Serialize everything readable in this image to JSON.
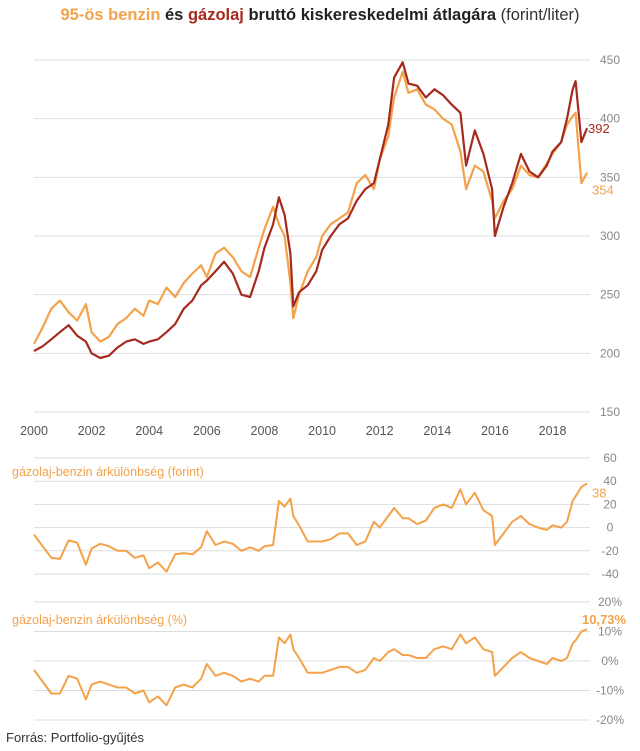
{
  "title": {
    "benzin": "95-ös benzin",
    "es": " és ",
    "gazolaj": "gázolaj",
    "rest": " bruttó kiskereskedelmi átlagára",
    "unit": " (forint/liter)"
  },
  "source": "Forrás: Portfolio-gyűjtés",
  "colors": {
    "benzin": "#f4a24a",
    "gazolaj": "#a52a1e",
    "diff": "#f4a24a",
    "grid": "#dddddd"
  },
  "chart_data": [
    {
      "type": "line",
      "title": "95-ös benzin és gázolaj bruttó kiskereskedelmi átlagára (forint/liter)",
      "xlabel": "",
      "ylabel": "",
      "x_ticks": [
        "2000",
        "2002",
        "2004",
        "2006",
        "2008",
        "2010",
        "2012",
        "2014",
        "2016",
        "2018"
      ],
      "y_ticks": [
        "450",
        "400",
        "350",
        "300",
        "250",
        "200",
        "150"
      ],
      "ylim": [
        150,
        450
      ],
      "xlim": [
        2000.0,
        2019.3
      ],
      "end_labels": {
        "gazolaj": "392",
        "benzin": "354"
      },
      "series": [
        {
          "name": "95-ös benzin",
          "x": [
            2000.0,
            2000.3,
            2000.6,
            2000.9,
            2001.2,
            2001.5,
            2001.8,
            2002.0,
            2002.3,
            2002.6,
            2002.9,
            2003.2,
            2003.5,
            2003.8,
            2004.0,
            2004.3,
            2004.6,
            2004.9,
            2005.2,
            2005.5,
            2005.8,
            2006.0,
            2006.3,
            2006.6,
            2006.9,
            2007.2,
            2007.5,
            2007.8,
            2008.0,
            2008.3,
            2008.5,
            2008.7,
            2008.9,
            2009.0,
            2009.2,
            2009.5,
            2009.8,
            2010.0,
            2010.3,
            2010.6,
            2010.9,
            2011.2,
            2011.5,
            2011.8,
            2012.0,
            2012.3,
            2012.5,
            2012.8,
            2013.0,
            2013.3,
            2013.6,
            2013.9,
            2014.2,
            2014.5,
            2014.8,
            2015.0,
            2015.3,
            2015.6,
            2015.9,
            2016.0,
            2016.3,
            2016.6,
            2016.9,
            2017.2,
            2017.5,
            2017.8,
            2018.0,
            2018.3,
            2018.5,
            2018.7,
            2018.8,
            2019.0,
            2019.2
          ],
          "values": [
            208,
            222,
            238,
            245,
            235,
            228,
            242,
            218,
            210,
            214,
            225,
            230,
            238,
            232,
            245,
            242,
            256,
            248,
            260,
            268,
            275,
            265,
            285,
            290,
            282,
            270,
            265,
            290,
            306,
            325,
            310,
            300,
            260,
            230,
            250,
            270,
            282,
            300,
            310,
            315,
            320,
            345,
            352,
            340,
            365,
            385,
            418,
            440,
            422,
            425,
            412,
            408,
            400,
            395,
            372,
            340,
            360,
            355,
            330,
            315,
            330,
            340,
            360,
            352,
            350,
            362,
            370,
            380,
            395,
            402,
            405,
            345,
            354
          ]
        },
        {
          "name": "gázolaj",
          "x": [
            2000.0,
            2000.3,
            2000.6,
            2000.9,
            2001.2,
            2001.5,
            2001.8,
            2002.0,
            2002.3,
            2002.6,
            2002.9,
            2003.2,
            2003.5,
            2003.8,
            2004.0,
            2004.3,
            2004.6,
            2004.9,
            2005.2,
            2005.5,
            2005.8,
            2006.0,
            2006.3,
            2006.6,
            2006.9,
            2007.2,
            2007.5,
            2007.8,
            2008.0,
            2008.3,
            2008.5,
            2008.7,
            2008.9,
            2009.0,
            2009.2,
            2009.5,
            2009.8,
            2010.0,
            2010.3,
            2010.6,
            2010.9,
            2011.2,
            2011.5,
            2011.8,
            2012.0,
            2012.3,
            2012.5,
            2012.8,
            2013.0,
            2013.3,
            2013.6,
            2013.9,
            2014.2,
            2014.5,
            2014.8,
            2015.0,
            2015.3,
            2015.6,
            2015.9,
            2016.0,
            2016.3,
            2016.6,
            2016.9,
            2017.2,
            2017.5,
            2017.8,
            2018.0,
            2018.3,
            2018.5,
            2018.7,
            2018.8,
            2019.0,
            2019.2
          ],
          "values": [
            202,
            206,
            212,
            218,
            224,
            215,
            210,
            200,
            196,
            198,
            205,
            210,
            212,
            208,
            210,
            212,
            218,
            225,
            238,
            245,
            258,
            262,
            270,
            278,
            268,
            250,
            248,
            270,
            290,
            310,
            333,
            318,
            285,
            240,
            252,
            258,
            270,
            288,
            300,
            310,
            315,
            330,
            340,
            345,
            365,
            395,
            435,
            448,
            430,
            428,
            418,
            425,
            420,
            412,
            405,
            360,
            390,
            370,
            340,
            300,
            325,
            345,
            370,
            355,
            350,
            360,
            372,
            380,
            400,
            425,
            432,
            380,
            392
          ]
        }
      ]
    },
    {
      "type": "line",
      "title": "gázolaj-benzin árkülönbség (forint)",
      "y_ticks": [
        "60",
        "40",
        "20",
        "0",
        "-20",
        "-40"
      ],
      "ylim": [
        -40,
        60
      ],
      "xlim": [
        2000.0,
        2019.3
      ],
      "end_label": "38",
      "series": [
        {
          "name": "gázolaj-benzin árkülönbség (forint)",
          "x": [
            2000.0,
            2000.3,
            2000.6,
            2000.9,
            2001.2,
            2001.5,
            2001.8,
            2002.0,
            2002.3,
            2002.6,
            2002.9,
            2003.2,
            2003.5,
            2003.8,
            2004.0,
            2004.3,
            2004.6,
            2004.9,
            2005.2,
            2005.5,
            2005.8,
            2006.0,
            2006.3,
            2006.6,
            2006.9,
            2007.2,
            2007.5,
            2007.8,
            2008.0,
            2008.3,
            2008.5,
            2008.7,
            2008.9,
            2009.0,
            2009.2,
            2009.5,
            2009.8,
            2010.0,
            2010.3,
            2010.6,
            2010.9,
            2011.2,
            2011.5,
            2011.8,
            2012.0,
            2012.3,
            2012.5,
            2012.8,
            2013.0,
            2013.3,
            2013.6,
            2013.9,
            2014.2,
            2014.5,
            2014.8,
            2015.0,
            2015.3,
            2015.6,
            2015.9,
            2016.0,
            2016.3,
            2016.6,
            2016.9,
            2017.2,
            2017.5,
            2017.8,
            2018.0,
            2018.3,
            2018.5,
            2018.7,
            2018.8,
            2019.0,
            2019.2
          ],
          "values": [
            -6,
            -16,
            -26,
            -27,
            -11,
            -13,
            -32,
            -18,
            -14,
            -16,
            -20,
            -20,
            -26,
            -24,
            -35,
            -30,
            -38,
            -23,
            -22,
            -23,
            -17,
            -3,
            -15,
            -12,
            -14,
            -20,
            -17,
            -20,
            -16,
            -15,
            23,
            18,
            25,
            10,
            2,
            -12,
            -12,
            -12,
            -10,
            -5,
            -5,
            -15,
            -12,
            5,
            0,
            10,
            17,
            8,
            8,
            3,
            6,
            17,
            20,
            17,
            33,
            20,
            30,
            15,
            10,
            -15,
            -5,
            5,
            10,
            3,
            0,
            -2,
            2,
            0,
            5,
            23,
            27,
            35,
            38
          ]
        }
      ]
    },
    {
      "type": "line",
      "title": "gázolaj-benzin árkülönbség (%)",
      "y_ticks": [
        "20%",
        "10%",
        "0%",
        "-10%",
        "-20%"
      ],
      "ylim": [
        -20,
        20
      ],
      "xlim": [
        2000.0,
        2019.3
      ],
      "end_label": "10,73%",
      "series": [
        {
          "name": "gázolaj-benzin árkülönbség (%)",
          "x": [
            2000.0,
            2000.3,
            2000.6,
            2000.9,
            2001.2,
            2001.5,
            2001.8,
            2002.0,
            2002.3,
            2002.6,
            2002.9,
            2003.2,
            2003.5,
            2003.8,
            2004.0,
            2004.3,
            2004.6,
            2004.9,
            2005.2,
            2005.5,
            2005.8,
            2006.0,
            2006.3,
            2006.6,
            2006.9,
            2007.2,
            2007.5,
            2007.8,
            2008.0,
            2008.3,
            2008.5,
            2008.7,
            2008.9,
            2009.0,
            2009.2,
            2009.5,
            2009.8,
            2010.0,
            2010.3,
            2010.6,
            2010.9,
            2011.2,
            2011.5,
            2011.8,
            2012.0,
            2012.3,
            2012.5,
            2012.8,
            2013.0,
            2013.3,
            2013.6,
            2013.9,
            2014.2,
            2014.5,
            2014.8,
            2015.0,
            2015.3,
            2015.6,
            2015.9,
            2016.0,
            2016.3,
            2016.6,
            2016.9,
            2017.2,
            2017.5,
            2017.8,
            2018.0,
            2018.3,
            2018.5,
            2018.7,
            2018.8,
            2019.0,
            2019.2
          ],
          "values": [
            -3,
            -7,
            -11,
            -11,
            -5,
            -6,
            -13,
            -8,
            -7,
            -8,
            -9,
            -9,
            -11,
            -10,
            -14,
            -12,
            -15,
            -9,
            -8,
            -9,
            -6,
            -1,
            -5,
            -4,
            -5,
            -7,
            -6,
            -7,
            -5,
            -5,
            8,
            6,
            9,
            4,
            1,
            -4,
            -4,
            -4,
            -3,
            -2,
            -2,
            -4,
            -3,
            1,
            0,
            3,
            4,
            2,
            2,
            1,
            1,
            4,
            5,
            4,
            9,
            6,
            8,
            4,
            3,
            -5,
            -2,
            1,
            3,
            1,
            0,
            -1,
            1,
            0,
            1,
            6,
            7,
            10,
            10.73
          ]
        }
      ]
    }
  ]
}
